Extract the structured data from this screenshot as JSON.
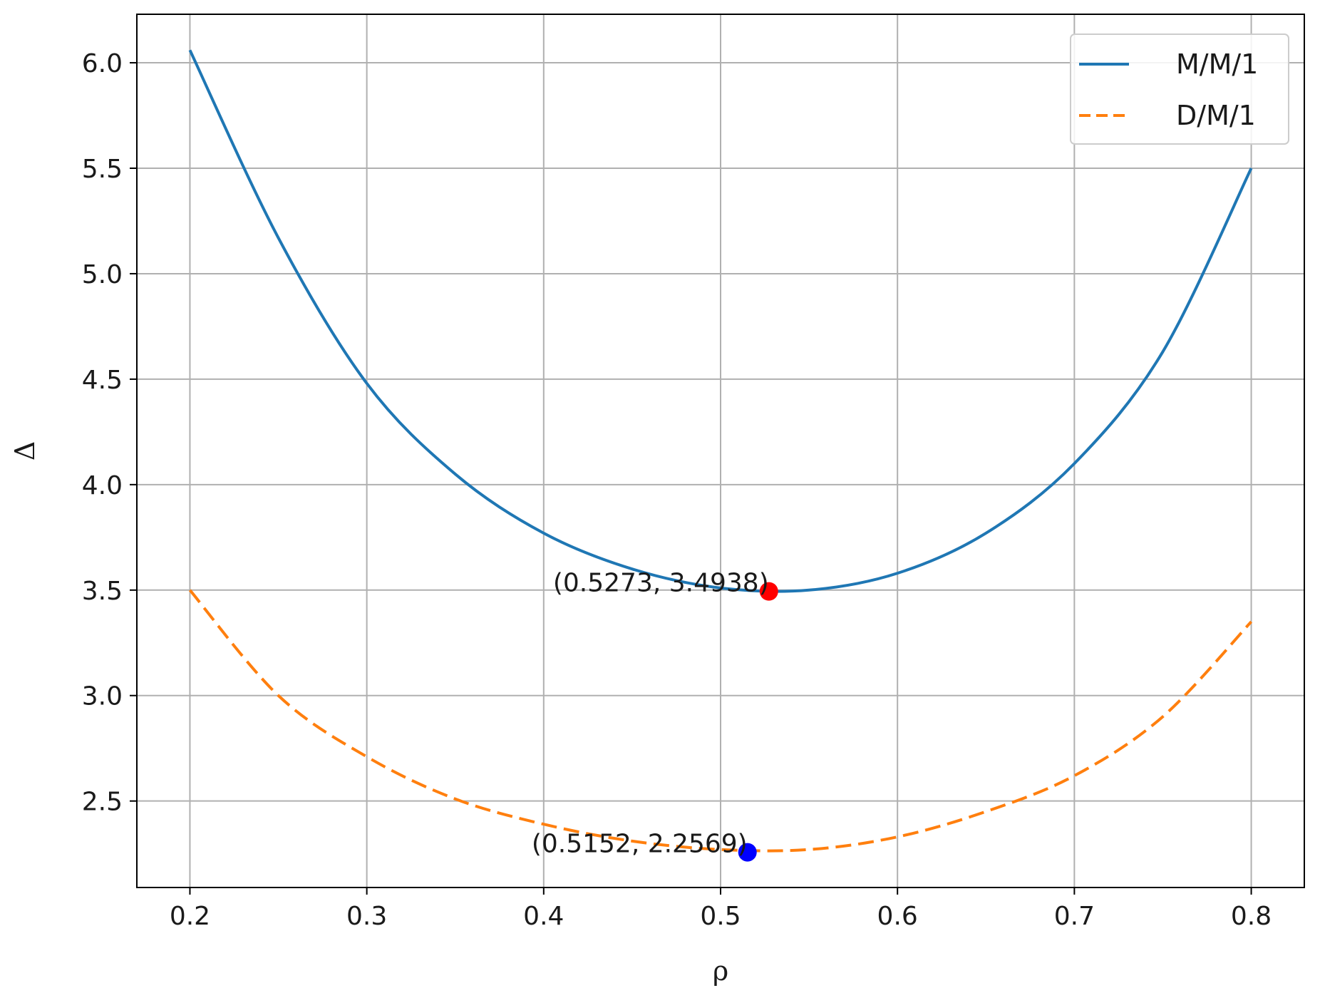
{
  "chart_data": {
    "type": "line",
    "xlabel": "ρ",
    "ylabel": "Δ",
    "xlim": [
      0.17,
      0.83
    ],
    "ylim": [
      2.09,
      6.23
    ],
    "xticks": [
      0.2,
      0.3,
      0.4,
      0.5,
      0.6,
      0.7,
      0.8
    ],
    "xtick_labels": [
      "0.2",
      "0.3",
      "0.4",
      "0.5",
      "0.6",
      "0.7",
      "0.8"
    ],
    "yticks": [
      2.5,
      3.0,
      3.5,
      4.0,
      4.5,
      5.0,
      5.5,
      6.0
    ],
    "ytick_labels": [
      "2.5",
      "3.0",
      "3.5",
      "4.0",
      "4.5",
      "5.0",
      "5.5",
      "6.0"
    ],
    "grid": true,
    "legend_position": "top-right",
    "series": [
      {
        "name": "M/M/1",
        "style": "solid",
        "color": "#1f77b4",
        "x": [
          0.2,
          0.25,
          0.3,
          0.35,
          0.4,
          0.45,
          0.5,
          0.55,
          0.6,
          0.65,
          0.7,
          0.75,
          0.8
        ],
        "y": [
          6.06,
          5.17,
          4.48,
          4.05,
          3.77,
          3.6,
          3.51,
          3.5,
          3.58,
          3.77,
          4.1,
          4.63,
          5.5
        ]
      },
      {
        "name": "D/M/1",
        "style": "dashed",
        "color": "#ff7f0e",
        "x": [
          0.2,
          0.25,
          0.3,
          0.35,
          0.4,
          0.45,
          0.5,
          0.55,
          0.6,
          0.65,
          0.7,
          0.75,
          0.8
        ],
        "y": [
          3.5,
          3.0,
          2.71,
          2.51,
          2.39,
          2.31,
          2.27,
          2.27,
          2.33,
          2.45,
          2.62,
          2.9,
          3.35
        ]
      }
    ],
    "markers": [
      {
        "x": 0.5273,
        "y": 3.4938,
        "color": "#ff0000",
        "label": "(0.5273, 3.4938)"
      },
      {
        "x": 0.5152,
        "y": 2.2569,
        "color": "#0000ff",
        "label": "(0.5152, 2.2569)"
      }
    ]
  }
}
